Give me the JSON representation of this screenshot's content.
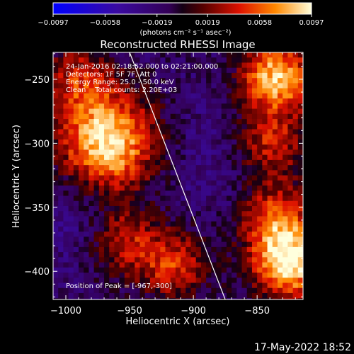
{
  "chart_data": {
    "type": "heatmap",
    "title": "Reconstructed RHESSI Image",
    "xlabel": "Heliocentric X (arcsec)",
    "ylabel": "Heliocentric Y (arcsec)",
    "xlim": [
      -1010,
      -814
    ],
    "ylim": [
      -422,
      -229
    ],
    "x_ticks": [
      -1000,
      -950,
      -900,
      -850
    ],
    "x_tick_labels": [
      "−1000",
      "−950",
      "−900",
      "−850"
    ],
    "y_ticks": [
      -400,
      -350,
      -300,
      -250
    ],
    "y_tick_labels": [
      "−400",
      "−350",
      "−300",
      "−250"
    ],
    "colorbar": {
      "ticks": [
        -0.0097,
        -0.0058,
        -0.0019,
        0.0019,
        0.0058,
        0.0097
      ],
      "tick_labels": [
        "−0.0097",
        "−0.0058",
        "−0.0019",
        "0.0019",
        "0.0058",
        "0.0097"
      ],
      "range": [
        -0.0097,
        0.0097
      ],
      "units_label": "(photons cm⁻² s⁻¹ asec⁻²)"
    },
    "annotations": [
      "24-Jan-2016 02:18:52.000 to 02:21:00.000",
      "Detectors: 1F 5F 7F, Att 0",
      "Energy Range: 25.0 - 50.0 keV",
      "Clean    Total counts: 2.20E+03"
    ],
    "peak_label": "Position of Peak = [-967,-300]",
    "bright_sources": [
      {
        "x": -967,
        "y": -300,
        "value": 0.0097
      },
      {
        "x": -835,
        "y": -248,
        "value": 0.0085
      },
      {
        "x": -825,
        "y": -395,
        "value": 0.009
      },
      {
        "x": -835,
        "y": -360,
        "value": 0.0055
      },
      {
        "x": -955,
        "y": -375,
        "value": 0.004
      },
      {
        "x": -915,
        "y": -395,
        "value": 0.0045
      },
      {
        "x": -990,
        "y": -250,
        "value": 0.0035
      },
      {
        "x": -840,
        "y": -300,
        "value": 0.004
      }
    ],
    "dark_regions": [
      {
        "x": -880,
        "y": -300,
        "value": -0.004
      },
      {
        "x": -985,
        "y": -355,
        "value": -0.006
      },
      {
        "x": -900,
        "y": -345,
        "value": -0.003
      }
    ],
    "limb_line": [
      [
        -950,
        -229
      ],
      [
        -875,
        -422
      ]
    ]
  },
  "footer": {
    "date": "17-May-2022 18:52"
  }
}
